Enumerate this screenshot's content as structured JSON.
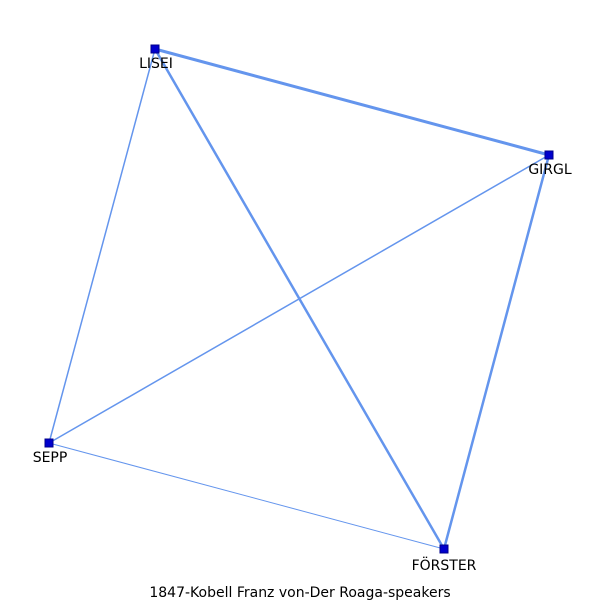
{
  "graph": {
    "caption": "1847-Kobell_Franz_von-Der_Roaga-speakers",
    "caption_display": "1847-Kobell  Franz  von-Der  Roaga-speakers",
    "edge_color": "#6495ed",
    "node_color": "#0000cd",
    "nodes": [
      {
        "id": "lisei",
        "label": "LISEI"
      },
      {
        "id": "girgl",
        "label": "GIRGL"
      },
      {
        "id": "sepp",
        "label": "SEPP"
      },
      {
        "id": "forster",
        "label": "FÖRSTER"
      }
    ],
    "edges": [
      {
        "source": "lisei",
        "target": "girgl",
        "weight": 3
      },
      {
        "source": "lisei",
        "target": "forster",
        "weight": 2.5
      },
      {
        "source": "girgl",
        "target": "forster",
        "weight": 2.5
      },
      {
        "source": "lisei",
        "target": "sepp",
        "weight": 1.5
      },
      {
        "source": "sepp",
        "target": "girgl",
        "weight": 1.5
      },
      {
        "source": "sepp",
        "target": "forster",
        "weight": 1
      }
    ]
  }
}
